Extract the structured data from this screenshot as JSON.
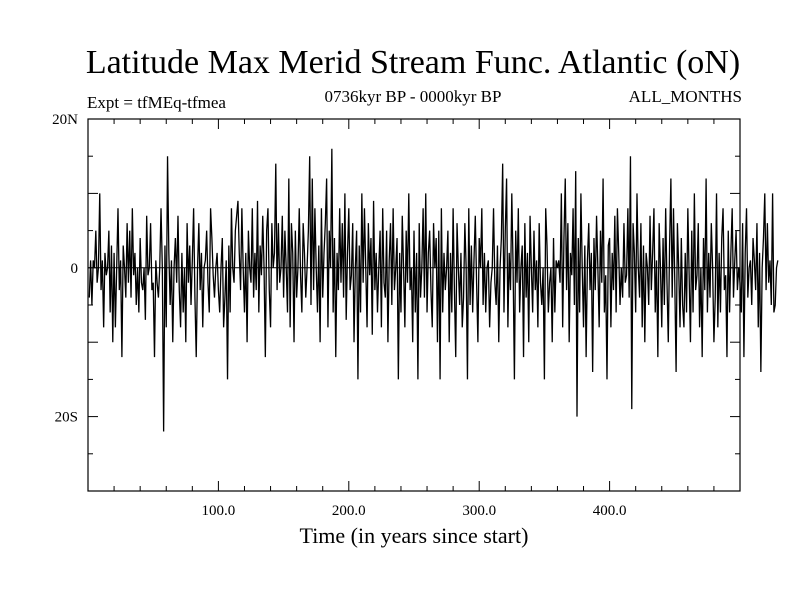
{
  "chart_data": {
    "type": "line",
    "title": "Latitude Max Merid Stream Func. Atlantic (oN)",
    "subtitle_left": "Expt = tfMEq-tfmea",
    "subtitle_center": "0736kyr BP - 0000kyr BP",
    "subtitle_right": "ALL_MONTHS",
    "xlabel": "Time (in years since start)",
    "ylabel": "",
    "xlim": [
      0,
      500
    ],
    "ylim": [
      -30,
      20
    ],
    "x_ticks": [
      {
        "value": 100,
        "label": "100.0"
      },
      {
        "value": 200,
        "label": "200.0"
      },
      {
        "value": 300,
        "label": "300.0"
      },
      {
        "value": 400,
        "label": "400.0"
      }
    ],
    "y_ticks": [
      {
        "value": 20,
        "label": "20N"
      },
      {
        "value": 0,
        "label": "0"
      },
      {
        "value": -20,
        "label": "20S"
      }
    ],
    "reference_line": 0,
    "series": [
      {
        "name": "max_merid_streamfunc_latitude",
        "x_start": 1,
        "x_step": 1,
        "values": [
          -4,
          1,
          -5,
          1,
          0,
          5,
          -2,
          0,
          10,
          -3,
          1,
          -8,
          2,
          -1,
          0,
          5,
          -6,
          3,
          -10,
          2,
          -8,
          0,
          8,
          -3,
          1,
          -12,
          3,
          0,
          -4,
          6,
          -2,
          5,
          -4,
          8,
          -1,
          2,
          -5,
          0,
          -6,
          4,
          -2,
          -3,
          0,
          -7,
          7,
          -1,
          0,
          6,
          -3,
          -2,
          -12,
          1,
          -2,
          -4,
          0,
          8,
          0,
          -22,
          3,
          -8,
          15,
          2,
          -5,
          1,
          -10,
          0,
          4,
          -2,
          7,
          -3,
          -8,
          2,
          -6,
          0,
          -10,
          6,
          -2,
          3,
          -5,
          1,
          8,
          -4,
          -12,
          0,
          6,
          -3,
          2,
          -8,
          0,
          1,
          5,
          -2,
          -6,
          8,
          4,
          -1,
          -4,
          0,
          2,
          -3,
          -6,
          0,
          4,
          -8,
          -4,
          1,
          -15,
          3,
          -6,
          8,
          0,
          -2,
          5,
          7,
          9,
          2,
          -3,
          8,
          0,
          -6,
          2,
          -10,
          5,
          0,
          -2,
          8,
          -4,
          2,
          -3,
          9,
          -6,
          3,
          -1,
          7,
          0,
          -12,
          5,
          8,
          -3,
          -8,
          6,
          0,
          2,
          14,
          -3,
          6,
          -2,
          0,
          7,
          -4,
          5,
          0,
          -6,
          12,
          -8,
          6,
          2,
          -10,
          5,
          -4,
          0,
          8,
          -1,
          -6,
          6,
          2,
          -4,
          0,
          5,
          15,
          -5,
          12,
          -3,
          8,
          0,
          -6,
          3,
          -10,
          8,
          -4,
          2,
          6,
          12,
          -8,
          5,
          0,
          16,
          -6,
          4,
          -12,
          2,
          -3,
          8,
          -2,
          6,
          -4,
          10,
          -7,
          2,
          8,
          -3,
          -1,
          6,
          -10,
          0,
          5,
          -15,
          3,
          -6,
          10,
          -2,
          8,
          0,
          -8,
          6,
          -1,
          4,
          -9,
          9,
          -3,
          2,
          -6,
          0,
          5,
          -8,
          8,
          -2,
          -4,
          5,
          -10,
          1,
          6,
          -5,
          8,
          -3,
          0,
          4,
          -15,
          2,
          -6,
          7,
          0,
          -8,
          5,
          -2,
          10,
          -3,
          0,
          -10,
          5,
          -6,
          2,
          -15,
          6,
          -4,
          0,
          8,
          -4,
          10,
          -6,
          2,
          5,
          -3,
          -8,
          6,
          0,
          4,
          -10,
          5,
          -15,
          8,
          -6,
          2,
          -3,
          0,
          5,
          -10,
          2,
          -6,
          8,
          -3,
          -12,
          6,
          0,
          -5,
          2,
          -8,
          -4,
          6,
          0,
          -15,
          8,
          -5,
          3,
          -6,
          1,
          7,
          -2,
          -10,
          4,
          0,
          8,
          -5,
          2,
          -6,
          0,
          1,
          -8,
          -2,
          0,
          8,
          -2,
          -5,
          3,
          -10,
          0,
          4,
          14,
          -6,
          5,
          12,
          -8,
          2,
          -3,
          10,
          0,
          -15,
          5,
          -2,
          8,
          -6,
          0,
          3,
          -12,
          6,
          -4,
          2,
          -10,
          7,
          0,
          -6,
          5,
          -3,
          1,
          -8,
          6,
          -2,
          -5,
          0,
          -15,
          8,
          3,
          -6,
          -2,
          0,
          -10,
          4,
          -6,
          1,
          0,
          1,
          -2,
          10,
          -8,
          4,
          12,
          -3,
          6,
          -10,
          2,
          -1,
          8,
          -5,
          13,
          -20,
          4,
          -6,
          10,
          0,
          -8,
          3,
          -12,
          1,
          6,
          -3,
          2,
          -14,
          4,
          -3,
          7,
          0,
          -8,
          5,
          -2,
          12,
          -6,
          -1,
          -15,
          3,
          4,
          -8,
          2,
          -3,
          7,
          -6,
          8,
          2,
          -5,
          0,
          -4,
          6,
          -2,
          -1,
          8,
          -4,
          15,
          -19,
          6,
          2,
          -6,
          10,
          0,
          -4,
          6,
          -8,
          3,
          -10,
          2,
          0,
          -5,
          7,
          -3,
          2,
          8,
          -6,
          1,
          -12,
          6,
          0,
          -8,
          4,
          -5,
          8,
          -2,
          -10,
          3,
          12,
          -4,
          8,
          -2,
          -14,
          6,
          0,
          -8,
          4,
          -5,
          -8,
          2,
          -6,
          8,
          -1,
          -10,
          5,
          -6,
          10,
          -3,
          -1,
          6,
          -8,
          0,
          -12,
          4,
          -3,
          12,
          -6,
          2,
          -4,
          6,
          0,
          -10,
          -4,
          10,
          -8,
          2,
          -6,
          4,
          8,
          -3,
          -1,
          -12,
          5,
          -6,
          2,
          8,
          -4,
          1,
          5,
          -3,
          0,
          -2,
          -6,
          6,
          -12,
          2,
          8,
          -4,
          0,
          1,
          -5,
          4,
          1,
          -3,
          6,
          -8,
          2,
          -14,
          0,
          4,
          10,
          -3,
          6,
          -2,
          1,
          -5,
          10,
          -6,
          -5,
          0,
          1
        ]
      }
    ]
  }
}
